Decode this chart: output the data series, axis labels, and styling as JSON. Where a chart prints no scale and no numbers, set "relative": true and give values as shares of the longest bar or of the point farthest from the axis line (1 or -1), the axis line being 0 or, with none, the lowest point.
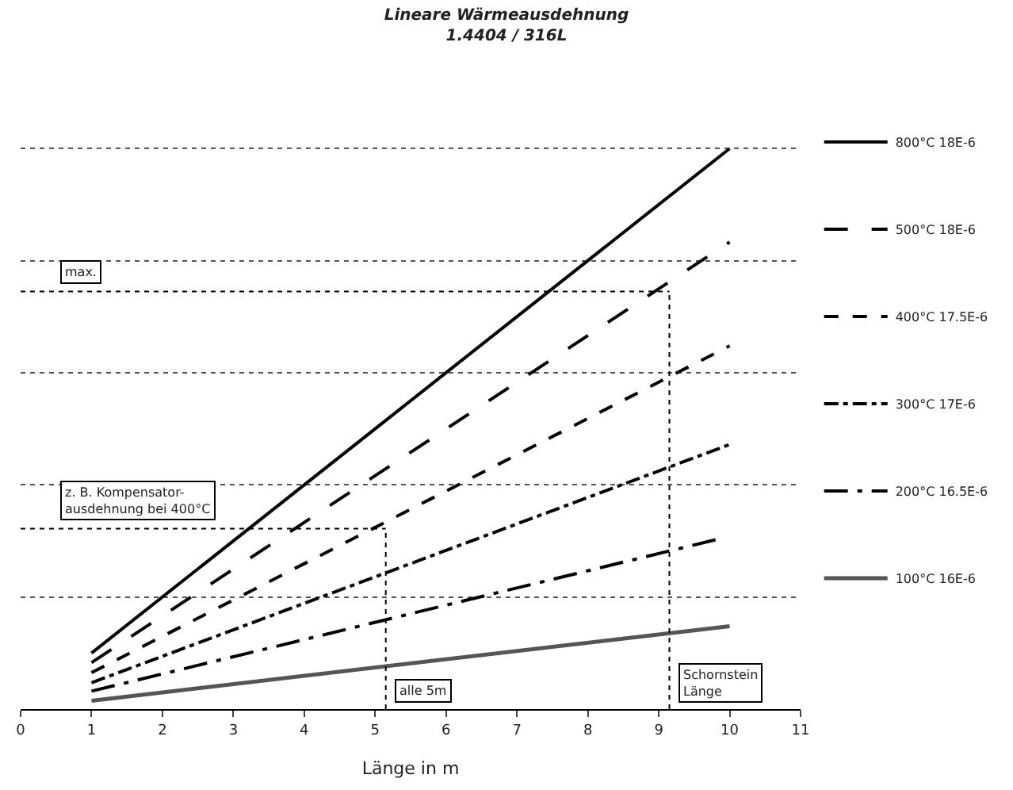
{
  "chart_data": {
    "type": "line",
    "title": "Lineare Wärmeausdehnung",
    "subtitle": "1.4404 / 316L",
    "xlabel": "Länge in m",
    "relative": true,
    "xlim": [
      0,
      11
    ],
    "xticks": [
      0,
      1,
      2,
      3,
      4,
      5,
      6,
      7,
      8,
      9,
      10,
      11
    ],
    "series": [
      {
        "name": "800°C 18E-6",
        "color": "#000000",
        "x": [
          1,
          10
        ],
        "values": [
          0.1,
          1.0
        ],
        "line_style": "solid"
      },
      {
        "name": "500°C 18E-6",
        "color": "#000000",
        "x": [
          1,
          10
        ],
        "values": [
          0.083,
          0.833
        ],
        "line_style": "longdash"
      },
      {
        "name": "400°C 17.5E-6",
        "color": "#000000",
        "x": [
          1,
          10
        ],
        "values": [
          0.065,
          0.648
        ],
        "line_style": "dashed"
      },
      {
        "name": "300°C 17E-6",
        "color": "#000000",
        "x": [
          1,
          10
        ],
        "values": [
          0.047,
          0.472
        ],
        "line_style": "dashdot"
      },
      {
        "name": "200°C 16.5E-6",
        "color": "#000000",
        "x": [
          1,
          9.8
        ],
        "values": [
          0.032,
          0.302
        ],
        "line_style": "longdashdot"
      },
      {
        "name": "100°C 16E-6",
        "color": "#555555",
        "x": [
          1,
          10
        ],
        "values": [
          0.015,
          0.148
        ],
        "line_style": "solid"
      }
    ],
    "ref_lines": [
      {
        "axis": "y",
        "value": 0.745,
        "label": "max.",
        "line_style": "dotted"
      },
      {
        "axis": "y",
        "value": 0.322,
        "label": "z. B. Kompensator-\nausdehnung bei 400°C",
        "line_style": "dotted"
      },
      {
        "axis": "x",
        "value": 9.15,
        "label": "Schornstein\nLänge",
        "line_style": "dotted"
      },
      {
        "axis": "x",
        "value": 5.15,
        "label": "alle 5m",
        "line_style": "dotted"
      }
    ],
    "grid": "y",
    "legend": "right",
    "marker": "none"
  }
}
